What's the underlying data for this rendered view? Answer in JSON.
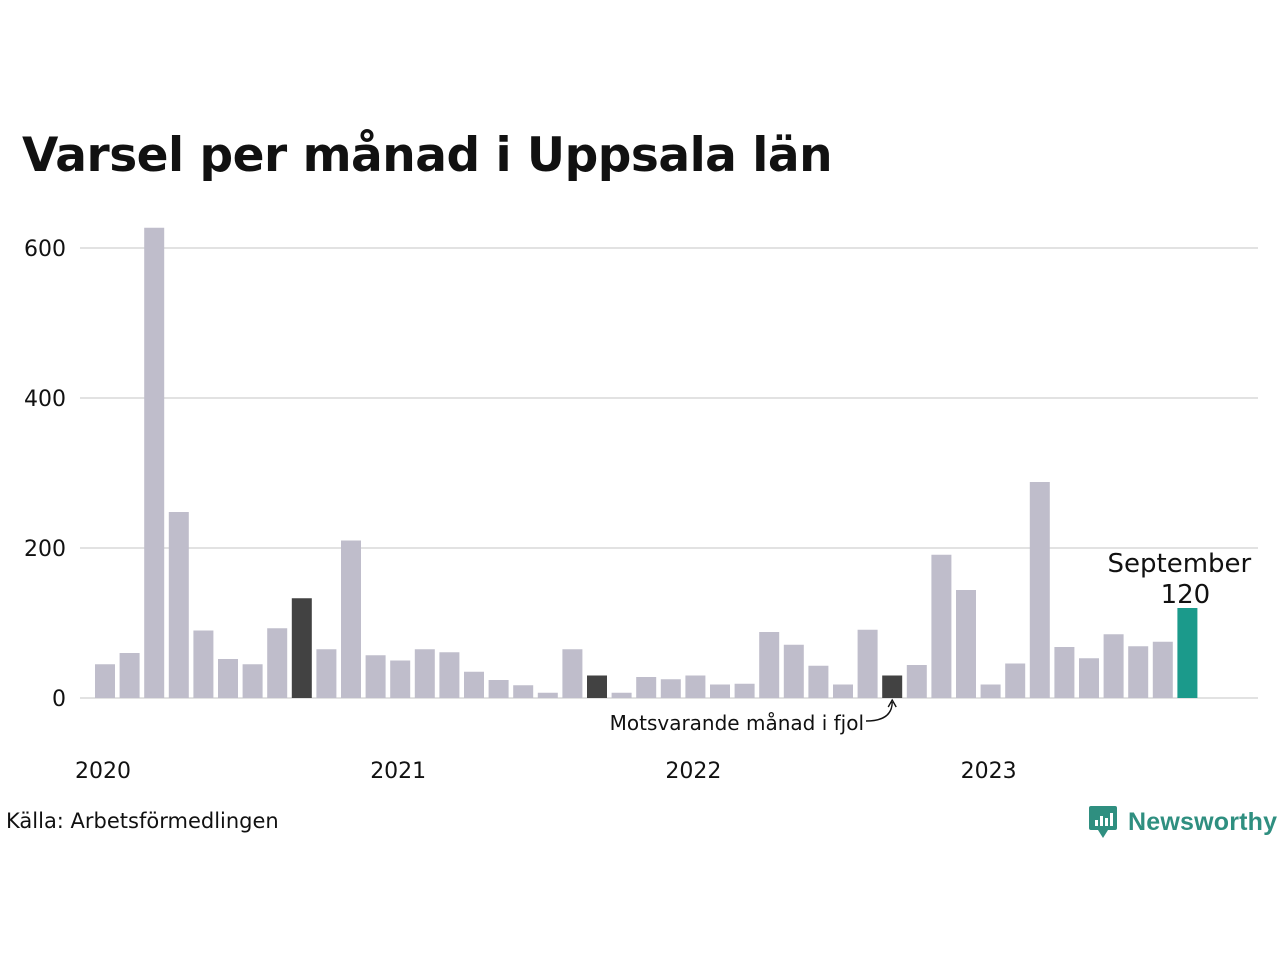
{
  "title": "Varsel per månad i Uppsala län",
  "source": "Källa: Arbetsförmedlingen",
  "brand": {
    "name": "Newsworthy",
    "icon": "newsworthy-logo-icon",
    "color": "#2f8f80"
  },
  "colors": {
    "bar": "#bfbdcb",
    "comparison": "#424242",
    "highlight": "#1b9a8b",
    "grid": "#e2e2e2"
  },
  "chart_data": {
    "type": "bar",
    "title": "Varsel per månad i Uppsala län",
    "ylim": [
      0,
      640
    ],
    "y_ticks": [
      0,
      200,
      400,
      600
    ],
    "x_labels": [
      "2020",
      "2021",
      "2022",
      "2023"
    ],
    "grid": true,
    "categories": [
      "2020-01",
      "2020-02",
      "2020-03",
      "2020-04",
      "2020-05",
      "2020-06",
      "2020-07",
      "2020-08",
      "2020-09",
      "2020-10",
      "2020-11",
      "2020-12",
      "2021-01",
      "2021-02",
      "2021-03",
      "2021-04",
      "2021-05",
      "2021-06",
      "2021-07",
      "2021-08",
      "2021-09",
      "2021-10",
      "2021-11",
      "2021-12",
      "2022-01",
      "2022-02",
      "2022-03",
      "2022-04",
      "2022-05",
      "2022-06",
      "2022-07",
      "2022-08",
      "2022-09",
      "2022-10",
      "2022-11",
      "2022-12",
      "2023-01",
      "2023-02",
      "2023-03",
      "2023-04",
      "2023-05",
      "2023-06",
      "2023-07",
      "2023-08",
      "2023-09"
    ],
    "values": [
      45,
      60,
      627,
      248,
      90,
      52,
      45,
      93,
      133,
      65,
      210,
      57,
      50,
      65,
      61,
      35,
      24,
      17,
      7,
      65,
      30,
      7,
      28,
      25,
      30,
      18,
      19,
      88,
      71,
      43,
      18,
      91,
      30,
      44,
      191,
      144,
      18,
      46,
      288,
      68,
      53,
      85,
      69,
      75,
      120
    ],
    "comparison_indices": [
      8,
      20,
      32
    ],
    "highlight_index": 44,
    "highlight_label": "September",
    "highlight_value_label": "120",
    "annotation": "Motsvarande månad i fjol"
  }
}
